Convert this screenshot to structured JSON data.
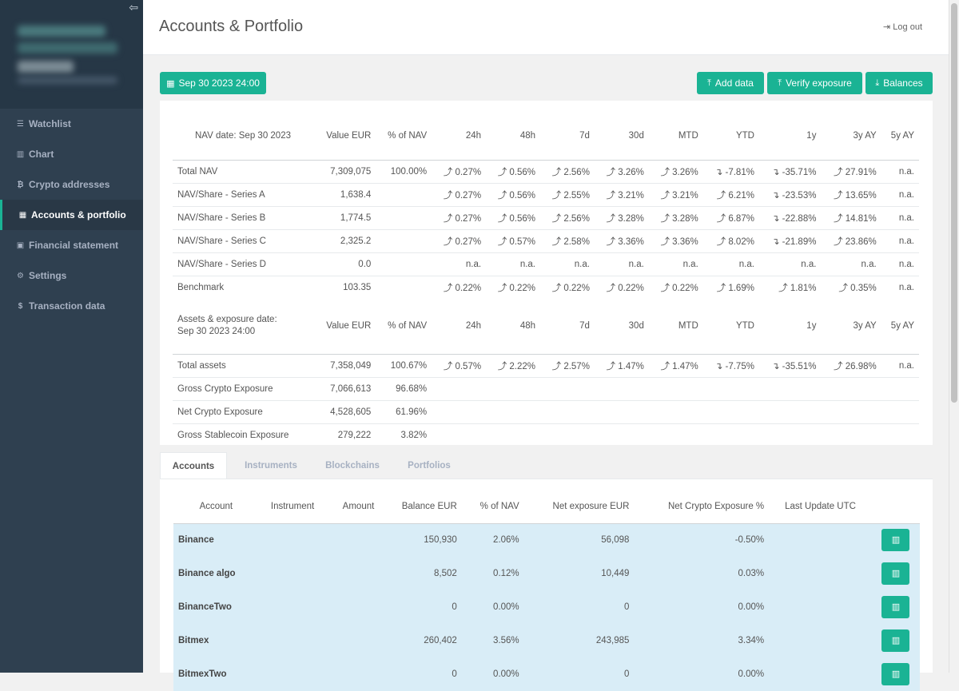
{
  "sidebar": {
    "items": [
      {
        "icon": "list-icon",
        "glyph": "☰",
        "label": "Watchlist"
      },
      {
        "icon": "bar-chart-icon",
        "glyph": "▥",
        "label": "Chart"
      },
      {
        "icon": "bitcoin-icon",
        "glyph": "₿",
        "label": "Crypto addresses"
      },
      {
        "icon": "table-icon",
        "glyph": "▦",
        "label": "Accounts & portfolio",
        "active": true
      },
      {
        "icon": "money-icon",
        "glyph": "▣",
        "label": "Financial statement"
      },
      {
        "icon": "gear-icon",
        "glyph": "⚙",
        "label": "Settings"
      },
      {
        "icon": "dollar-icon",
        "glyph": "$",
        "label": "Transaction data"
      }
    ]
  },
  "header": {
    "title": "Accounts & Portfolio",
    "logout": "Log out"
  },
  "toolbar": {
    "date_label": "Sep 30 2023 24:00",
    "add_data": "Add data",
    "verify_exposure": "Verify exposure",
    "balances": "Balances"
  },
  "nav_section": {
    "headers": [
      "NAV date: Sep 30 2023",
      "Value EUR",
      "% of NAV",
      "24h",
      "48h",
      "7d",
      "30d",
      "MTD",
      "YTD",
      "1y",
      "3y AY",
      "5y AY"
    ],
    "rows": [
      {
        "label": "Total NAV",
        "value": "7,309,075",
        "pct": "100.00%",
        "cells": [
          "0.27%",
          "0.56%",
          "2.56%",
          "3.26%",
          "3.26%",
          "-7.81%",
          "-35.71%",
          "27.91%",
          "n.a."
        ]
      },
      {
        "label": "NAV/Share - Series A",
        "value": "1,638.4",
        "pct": "",
        "cells": [
          "0.27%",
          "0.56%",
          "2.55%",
          "3.21%",
          "3.21%",
          "6.21%",
          "-23.53%",
          "13.65%",
          "n.a."
        ]
      },
      {
        "label": "NAV/Share - Series B",
        "value": "1,774.5",
        "pct": "",
        "cells": [
          "0.27%",
          "0.56%",
          "2.56%",
          "3.28%",
          "3.28%",
          "6.87%",
          "-22.88%",
          "14.81%",
          "n.a."
        ]
      },
      {
        "label": "NAV/Share - Series C",
        "value": "2,325.2",
        "pct": "",
        "cells": [
          "0.27%",
          "0.57%",
          "2.58%",
          "3.36%",
          "3.36%",
          "8.02%",
          "-21.89%",
          "23.86%",
          "n.a."
        ]
      },
      {
        "label": "NAV/Share - Series D",
        "value": "0.0",
        "pct": "",
        "cells": [
          "n.a.",
          "n.a.",
          "n.a.",
          "n.a.",
          "n.a.",
          "n.a.",
          "n.a.",
          "n.a.",
          "n.a."
        ]
      },
      {
        "label": "Benchmark",
        "value": "103.35",
        "pct": "",
        "cells": [
          "0.22%",
          "0.22%",
          "0.22%",
          "0.22%",
          "0.22%",
          "1.69%",
          "1.81%",
          "0.35%",
          "n.a."
        ]
      }
    ]
  },
  "assets_section": {
    "headers": [
      "Assets & exposure date:",
      "Sep 30 2023 24:00",
      "Value EUR",
      "% of NAV",
      "24h",
      "48h",
      "7d",
      "30d",
      "MTD",
      "YTD",
      "1y",
      "3y AY",
      "5y AY"
    ],
    "rows": [
      {
        "label": "Total assets",
        "value": "7,358,049",
        "pct": "100.67%",
        "cells": [
          "0.57%",
          "2.22%",
          "2.57%",
          "1.47%",
          "1.47%",
          "-7.75%",
          "-35.51%",
          "26.98%",
          "n.a."
        ]
      },
      {
        "label": "Gross Crypto Exposure",
        "value": "7,066,613",
        "pct": "96.68%",
        "cells": []
      },
      {
        "label": "Net Crypto Exposure",
        "value": "4,528,605",
        "pct": "61.96%",
        "cells": []
      },
      {
        "label": "Gross Stablecoin Exposure",
        "value": "279,222",
        "pct": "3.82%",
        "cells": []
      }
    ]
  },
  "tabs": [
    "Accounts",
    "Instruments",
    "Blockchains",
    "Portfolios"
  ],
  "accounts": {
    "headers": [
      "Account",
      "Instrument",
      "Amount",
      "Balance EUR",
      "% of NAV",
      "Net exposure EUR",
      "Net Crypto Exposure %",
      "Last Update UTC"
    ],
    "rows": [
      {
        "account": "Binance",
        "instrument": "",
        "amount": "",
        "balance": "150,930",
        "pct": "2.06%",
        "net": "56,098",
        "net_pct": "-0.50%",
        "updated": ""
      },
      {
        "account": "Binance algo",
        "instrument": "",
        "amount": "",
        "balance": "8,502",
        "pct": "0.12%",
        "net": "10,449",
        "net_pct": "0.03%",
        "updated": ""
      },
      {
        "account": "BinanceTwo",
        "instrument": "",
        "amount": "",
        "balance": "0",
        "pct": "0.00%",
        "net": "0",
        "net_pct": "0.00%",
        "updated": ""
      },
      {
        "account": "Bitmex",
        "instrument": "",
        "amount": "",
        "balance": "260,402",
        "pct": "3.56%",
        "net": "243,985",
        "net_pct": "3.34%",
        "updated": ""
      },
      {
        "account": "BitmexTwo",
        "instrument": "",
        "amount": "",
        "balance": "0",
        "pct": "0.00%",
        "net": "0",
        "net_pct": "0.00%",
        "updated": ""
      }
    ]
  },
  "colors": {
    "accent": "#1ab394",
    "negative": "#ed5565",
    "sidebar": "#2f4050",
    "row_highlight": "#d9edf7"
  }
}
